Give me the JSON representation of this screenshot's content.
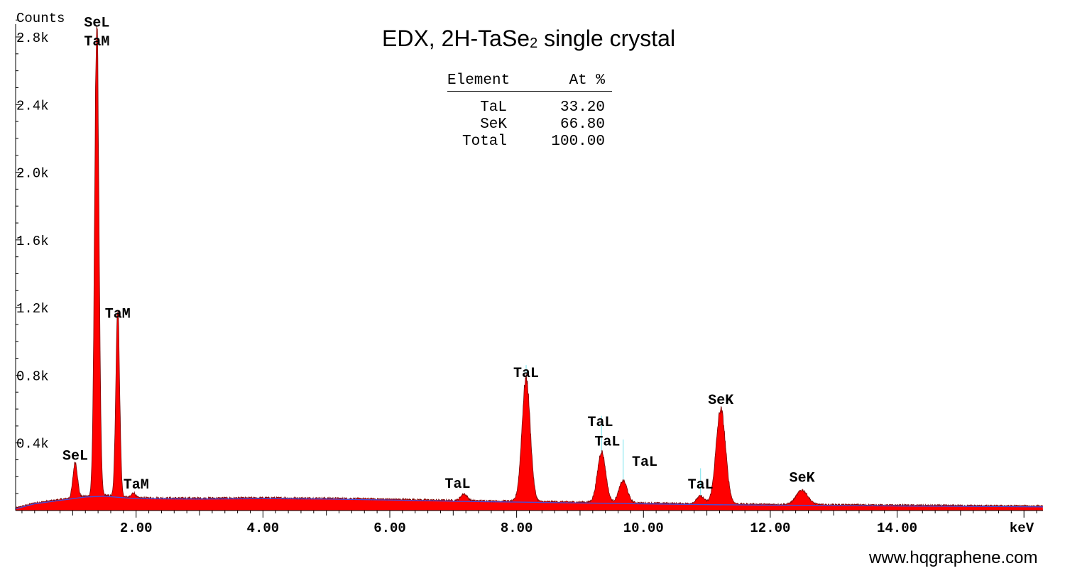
{
  "title": {
    "main": "EDX, 2H-TaSe",
    "sub": "2",
    "rest": " single crystal"
  },
  "website": "www.hqgraphene.com",
  "composition_table": {
    "headers": [
      "Element",
      "At %"
    ],
    "rows": [
      {
        "element": "TaL",
        "value": "33.20"
      },
      {
        "element": "SeK",
        "value": "66.80"
      },
      {
        "element": "Total",
        "value": "100.00"
      }
    ]
  },
  "chart_data": {
    "type": "area",
    "title": "EDX, 2H-TaSe2 single crystal",
    "xlabel": "keV",
    "ylabel": "Counts",
    "xlim": [
      0.1,
      16.3
    ],
    "ylim": [
      0,
      3000
    ],
    "x_ticks": [
      2,
      4,
      6,
      8,
      10,
      12,
      14
    ],
    "x_tick_labels": [
      "2.00",
      "4.00",
      "6.00",
      "8.00",
      "10.00",
      "12.00",
      "14.00"
    ],
    "y_ticks": [
      400,
      800,
      1200,
      1600,
      2000,
      2400,
      2800
    ],
    "y_tick_labels": [
      "0.4k",
      "0.8k",
      "1.2k",
      "1.6k",
      "2.0k",
      "2.4k",
      "2.8k"
    ],
    "colors": {
      "spectrum": "#ff0000",
      "background_line": "#4b4bd6",
      "marker_line": "#8fe8f0",
      "tam_marker": "#ffff66"
    },
    "background": [
      [
        0.1,
        10
      ],
      [
        0.4,
        40
      ],
      [
        0.8,
        60
      ],
      [
        1.2,
        80
      ],
      [
        1.5,
        85
      ],
      [
        2.0,
        70
      ],
      [
        3.0,
        68
      ],
      [
        4.0,
        70
      ],
      [
        5.0,
        68
      ],
      [
        6.0,
        62
      ],
      [
        7.0,
        55
      ],
      [
        8.0,
        50
      ],
      [
        9.0,
        45
      ],
      [
        10.0,
        40
      ],
      [
        11.0,
        35
      ],
      [
        12.0,
        32
      ],
      [
        13.0,
        30
      ],
      [
        14.0,
        27
      ],
      [
        15.0,
        25
      ],
      [
        16.3,
        22
      ]
    ],
    "peaks": [
      {
        "center": 1.04,
        "height": 210,
        "width": 0.035
      },
      {
        "center": 1.38,
        "height": 2800,
        "width": 0.034
      },
      {
        "center": 1.71,
        "height": 1120,
        "width": 0.03
      },
      {
        "center": 1.96,
        "height": 30,
        "width": 0.03
      },
      {
        "center": 7.17,
        "height": 40,
        "width": 0.05
      },
      {
        "center": 8.15,
        "height": 730,
        "width": 0.065
      },
      {
        "center": 9.34,
        "height": 300,
        "width": 0.065
      },
      {
        "center": 9.68,
        "height": 130,
        "width": 0.065
      },
      {
        "center": 10.9,
        "height": 45,
        "width": 0.06
      },
      {
        "center": 11.22,
        "height": 560,
        "width": 0.075
      },
      {
        "center": 12.5,
        "height": 85,
        "width": 0.09
      }
    ],
    "markers": [
      {
        "x": 1.38,
        "height": 2830,
        "color": "#ffff66"
      },
      {
        "x": 1.71,
        "height": 1150,
        "color": "#ffff66"
      },
      {
        "x": 8.15,
        "height": 860,
        "color": "#8fe8f0"
      },
      {
        "x": 9.34,
        "height": 560,
        "color": "#8fe8f0"
      },
      {
        "x": 9.68,
        "height": 420,
        "color": "#8fe8f0"
      },
      {
        "x": 10.9,
        "height": 250,
        "color": "#8fe8f0"
      },
      {
        "x": 11.22,
        "height": 540,
        "color": "#8fe8f0"
      }
    ],
    "annotations": [
      {
        "label": "SeL",
        "x": 1.38,
        "y": 2860
      },
      {
        "label": "TaM",
        "x": 1.38,
        "y": 2750
      },
      {
        "label": "TaM",
        "x": 1.71,
        "y": 1140
      },
      {
        "label": "SeL",
        "x": 1.04,
        "y": 300
      },
      {
        "label": "TaM",
        "x": 2.0,
        "y": 130
      },
      {
        "label": "TaL",
        "x": 7.07,
        "y": 135
      },
      {
        "label": "TaL",
        "x": 8.15,
        "y": 790
      },
      {
        "label": "TaL",
        "x": 9.32,
        "y": 500
      },
      {
        "label": "TaL",
        "x": 9.43,
        "y": 385
      },
      {
        "label": "TaL",
        "x": 10.02,
        "y": 265
      },
      {
        "label": "TaL",
        "x": 10.9,
        "y": 130
      },
      {
        "label": "SeK",
        "x": 11.22,
        "y": 630
      },
      {
        "label": "SeK",
        "x": 12.5,
        "y": 170
      }
    ]
  }
}
